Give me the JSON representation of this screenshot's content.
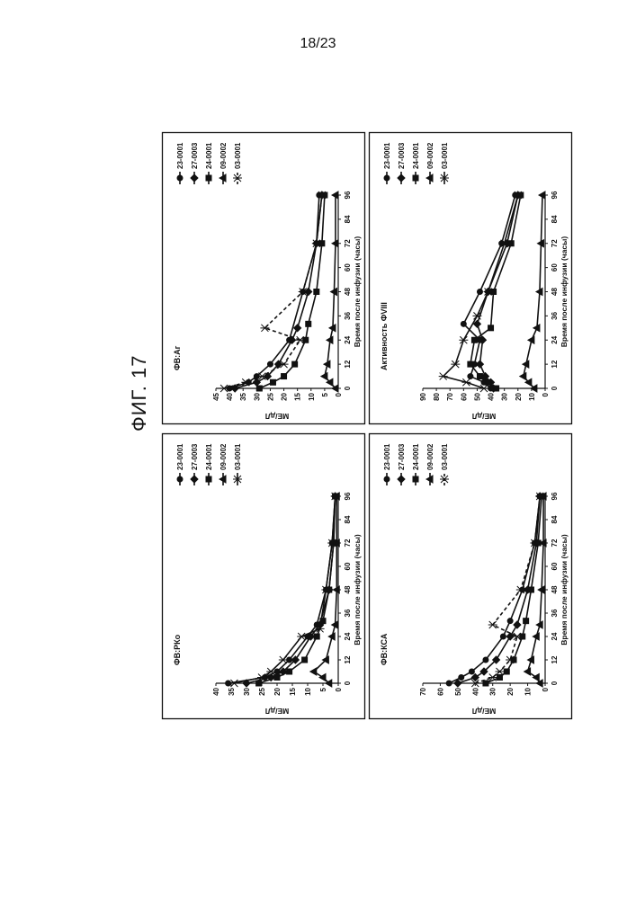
{
  "page": {
    "number": "18/23",
    "figure_label": "ФИГ. 17"
  },
  "chart_data": [
    {
      "type": "line",
      "title": "ФВ:РКо",
      "xlabel": "Время после инфузии (часы)",
      "ylabel": "МЕ/дЛ",
      "xticks": [
        0,
        12,
        24,
        36,
        48,
        60,
        72,
        84,
        96
      ],
      "yticks": [
        0,
        5,
        10,
        15,
        20,
        25,
        30,
        35,
        40
      ],
      "xlim": [
        0,
        96
      ],
      "ylim": [
        0,
        40
      ],
      "grid": false,
      "legend": "top-right",
      "series": [
        {
          "name": "23-0001",
          "marker": "circle",
          "dashed": false,
          "x": [
            0,
            3,
            6,
            12,
            24,
            30,
            48,
            72,
            96
          ],
          "y": [
            36,
            24,
            20,
            16,
            10,
            7,
            4,
            2,
            1
          ]
        },
        {
          "name": "27-0003",
          "marker": "diamond",
          "dashed": false,
          "x": [
            0,
            3,
            6,
            12,
            24,
            30,
            48,
            72,
            96
          ],
          "y": [
            30,
            22,
            18,
            14,
            9,
            6,
            3,
            1.5,
            1
          ]
        },
        {
          "name": "24-0001",
          "marker": "square",
          "dashed": false,
          "x": [
            0,
            3,
            6,
            12,
            24,
            32,
            48,
            72,
            96
          ],
          "y": [
            26,
            20,
            16,
            11,
            7,
            5,
            3,
            1.5,
            1
          ]
        },
        {
          "name": "09-0002",
          "marker": "triangle",
          "dashed": false,
          "x": [
            0,
            3,
            6,
            12,
            24,
            30,
            48,
            72,
            96
          ],
          "y": [
            3,
            5,
            8,
            4,
            2,
            1,
            0.5,
            0.5,
            0.5
          ]
        },
        {
          "name": "03-0001",
          "marker": "star",
          "dashed": false,
          "x": [
            0,
            3,
            6,
            12,
            24,
            28,
            48,
            72,
            96
          ],
          "y": [
            34,
            25,
            22,
            18,
            12,
            6,
            4,
            2,
            1
          ]
        }
      ]
    },
    {
      "type": "line",
      "title": "ФВ:Аг",
      "xlabel": "Время после инфузии (часы)",
      "ylabel": "МЕ/дЛ",
      "xticks": [
        0,
        12,
        24,
        36,
        48,
        60,
        72,
        84,
        96
      ],
      "yticks": [
        0,
        5,
        10,
        15,
        20,
        25,
        30,
        35,
        40,
        45
      ],
      "xlim": [
        0,
        96
      ],
      "ylim": [
        0,
        45
      ],
      "grid": false,
      "legend": "top-right",
      "series": [
        {
          "name": "23-0001",
          "marker": "circle",
          "dashed": false,
          "x": [
            0,
            3,
            6,
            12,
            24,
            48,
            72,
            96
          ],
          "y": [
            40,
            33,
            30,
            25,
            18,
            13,
            8,
            7
          ]
        },
        {
          "name": "27-0003",
          "marker": "diamond",
          "dashed": false,
          "x": [
            0,
            3,
            6,
            12,
            24,
            30,
            48,
            72,
            96
          ],
          "y": [
            38,
            30,
            26,
            22,
            17,
            15,
            11,
            8,
            6
          ]
        },
        {
          "name": "24-0001",
          "marker": "square",
          "dashed": false,
          "x": [
            0,
            3,
            6,
            12,
            24,
            32,
            48,
            72,
            96
          ],
          "y": [
            29,
            24,
            20,
            16,
            12,
            11,
            8,
            6,
            5
          ]
        },
        {
          "name": "09-0002",
          "marker": "triangle",
          "dashed": false,
          "x": [
            0,
            3,
            6,
            12,
            24,
            30,
            48,
            72,
            96
          ],
          "y": [
            1,
            3,
            5,
            4,
            3,
            2,
            1.5,
            1,
            1
          ]
        },
        {
          "name": "03-0001",
          "marker": "star",
          "dashed": true,
          "x": [
            0,
            3,
            6,
            12,
            24,
            30,
            48,
            72,
            96
          ],
          "y": [
            42,
            34,
            28,
            20,
            14,
            27,
            13,
            8,
            6
          ]
        }
      ]
    },
    {
      "type": "line",
      "title": "ФВ:КСА",
      "xlabel": "Время после инфузии (часы)",
      "ylabel": "МЕ/дЛ",
      "xticks": [
        0,
        12,
        24,
        36,
        48,
        60,
        72,
        84,
        96
      ],
      "yticks": [
        0,
        10,
        20,
        30,
        40,
        50,
        60,
        70
      ],
      "xlim": [
        0,
        96
      ],
      "ylim": [
        0,
        70
      ],
      "grid": false,
      "legend": "top-right",
      "series": [
        {
          "name": "23-0001",
          "marker": "circle",
          "dashed": false,
          "x": [
            0,
            3,
            6,
            12,
            24,
            32,
            48,
            72,
            96
          ],
          "y": [
            55,
            48,
            42,
            34,
            24,
            20,
            13,
            6,
            3
          ]
        },
        {
          "name": "27-0003",
          "marker": "diamond",
          "dashed": false,
          "x": [
            0,
            3,
            6,
            12,
            24,
            30,
            48,
            72,
            96
          ],
          "y": [
            50,
            40,
            35,
            28,
            20,
            16,
            10,
            5,
            3
          ]
        },
        {
          "name": "24-0001",
          "marker": "square",
          "dashed": false,
          "x": [
            0,
            3,
            6,
            12,
            24,
            32,
            48,
            72,
            96
          ],
          "y": [
            34,
            26,
            22,
            18,
            13,
            11,
            8,
            4,
            2
          ]
        },
        {
          "name": "09-0002",
          "marker": "triangle",
          "dashed": false,
          "x": [
            0,
            3,
            6,
            12,
            24,
            30,
            48,
            72,
            96
          ],
          "y": [
            3,
            5,
            10,
            8,
            5,
            3,
            2,
            1,
            1
          ]
        },
        {
          "name": "03-0001",
          "marker": "star",
          "dashed": true,
          "x": [
            0,
            3,
            6,
            12,
            24,
            30,
            48,
            72,
            96
          ],
          "y": [
            40,
            30,
            26,
            20,
            16,
            30,
            14,
            6,
            3
          ]
        }
      ]
    },
    {
      "type": "line",
      "title": "Активность ФVIII",
      "xlabel": "Время после инфузии (часы)",
      "ylabel": "МЕ/дЛ",
      "xticks": [
        0,
        12,
        24,
        36,
        48,
        60,
        72,
        84,
        96
      ],
      "yticks": [
        0,
        10,
        20,
        30,
        40,
        50,
        60,
        70,
        80,
        90
      ],
      "xlim": [
        0,
        96
      ],
      "ylim": [
        0,
        90
      ],
      "grid": false,
      "legend": "top-right",
      "series": [
        {
          "name": "23-0001",
          "marker": "circle",
          "dashed": false,
          "x": [
            0,
            3,
            6,
            12,
            24,
            32,
            48,
            72,
            96
          ],
          "y": [
            40,
            45,
            55,
            52,
            48,
            60,
            48,
            32,
            22
          ]
        },
        {
          "name": "27-0003",
          "marker": "diamond",
          "dashed": false,
          "x": [
            0,
            3,
            6,
            12,
            24,
            32,
            48,
            72,
            96
          ],
          "y": [
            38,
            40,
            44,
            48,
            46,
            50,
            42,
            28,
            20
          ]
        },
        {
          "name": "24-0001",
          "marker": "square",
          "dashed": false,
          "x": [
            0,
            3,
            6,
            12,
            24,
            30,
            48,
            72,
            96
          ],
          "y": [
            36,
            42,
            48,
            55,
            52,
            40,
            38,
            25,
            18
          ]
        },
        {
          "name": "09-0002",
          "marker": "triangle",
          "dashed": false,
          "x": [
            0,
            3,
            6,
            12,
            24,
            30,
            48,
            72,
            96
          ],
          "y": [
            8,
            12,
            16,
            14,
            10,
            6,
            4,
            3,
            2
          ]
        },
        {
          "name": "03-0001",
          "marker": "star",
          "dashed": false,
          "x": [
            0,
            3,
            6,
            12,
            24,
            36,
            48,
            72,
            96
          ],
          "y": [
            45,
            58,
            75,
            66,
            60,
            50,
            42,
            30,
            20
          ]
        }
      ]
    }
  ]
}
